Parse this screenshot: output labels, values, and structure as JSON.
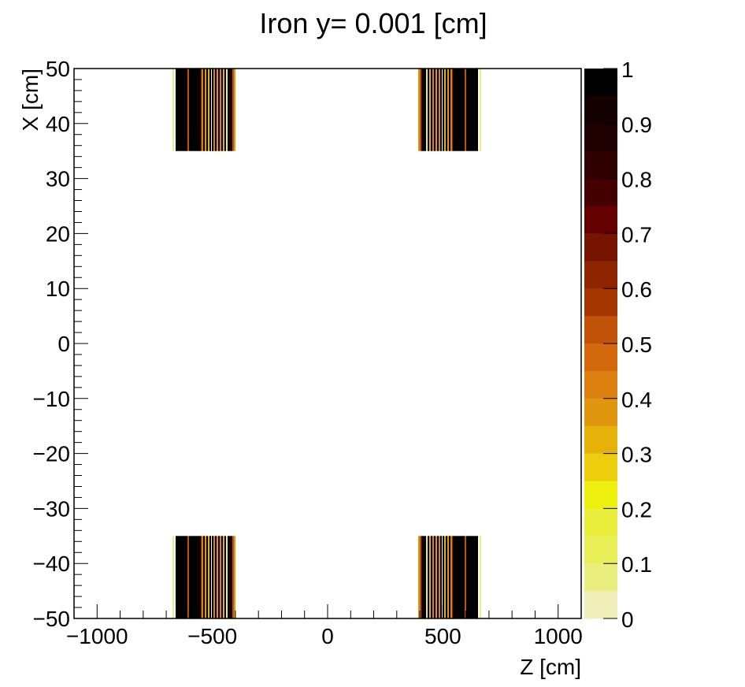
{
  "chart_data": {
    "type": "heatmap",
    "title": "Iron y=  0.001 [cm]",
    "xlabel": "Z [cm]",
    "ylabel": "X [cm]",
    "xlim": [
      -1100,
      1100
    ],
    "ylim": [
      -50,
      50
    ],
    "zlim": [
      0,
      1
    ],
    "x_ticks": [
      -1000,
      -500,
      0,
      500,
      1000
    ],
    "x_tick_labels": [
      "−1000",
      "−500",
      "0",
      "500",
      "1000"
    ],
    "y_ticks": [
      50,
      40,
      30,
      20,
      10,
      0,
      -10,
      -20,
      -30,
      -40,
      -50
    ],
    "y_tick_labels": [
      "50",
      "40",
      "30",
      "20",
      "10",
      "0",
      "−10",
      "−20",
      "−30",
      "−40",
      "−50"
    ],
    "colorbar": {
      "ticks": [
        1,
        0.9,
        0.8,
        0.7,
        0.6,
        0.5,
        0.4,
        0.3,
        0.2,
        0.1,
        0
      ],
      "tick_labels": [
        "1",
        "0.9",
        "0.8",
        "0.7",
        "0.6",
        "0.5",
        "0.4",
        "0.3",
        "0.2",
        "0.1",
        "0"
      ],
      "palette_top_to_bottom": [
        "#000000",
        "#130000",
        "#1e0000",
        "#2e0000",
        "#440000",
        "#640000",
        "#771400",
        "#8c2500",
        "#a63600",
        "#c05307",
        "#d4680c",
        "#dc800f",
        "#e0970f",
        "#e6b20a",
        "#ecce0e",
        "#eef00e",
        "#eaee3c",
        "#eaee56",
        "#eaee7e",
        "#f0efba"
      ]
    },
    "regions": [
      {
        "name": "iron-block-upper-left",
        "z_range": [
          -670,
          -405
        ],
        "x_range": [
          35,
          50
        ]
      },
      {
        "name": "iron-block-upper-right",
        "z_range": [
          395,
          665
        ],
        "x_range": [
          35,
          50
        ]
      },
      {
        "name": "iron-block-lower-left",
        "z_range": [
          -670,
          -405
        ],
        "x_range": [
          -50,
          -35
        ]
      },
      {
        "name": "iron-block-lower-right",
        "z_range": [
          395,
          665
        ],
        "x_range": [
          -50,
          -35
        ]
      }
    ],
    "stripe_pattern_description": "Each block is mostly black (value ~1) with thin vertical stripes of orange/yellow (values ~0.3-0.5) and a pale yellow edge line; the right blocks mirror the left blocks.",
    "left_block_stripes": [
      {
        "x": 219,
        "w": 2,
        "color": "#eaee7e"
      },
      {
        "x": 221,
        "w": 2,
        "color": "#ffffff"
      },
      {
        "x": 223,
        "w": 15,
        "color": "#000000"
      },
      {
        "x": 238,
        "w": 2,
        "color": "#c05307"
      },
      {
        "x": 240,
        "w": 15,
        "color": "#000000"
      },
      {
        "x": 255,
        "w": 1,
        "color": "#8c2500"
      },
      {
        "x": 256,
        "w": 2,
        "color": "#dc800f"
      },
      {
        "x": 258,
        "w": 2,
        "color": "#000000"
      },
      {
        "x": 260,
        "w": 2,
        "color": "#e0970f"
      },
      {
        "x": 262,
        "w": 2,
        "color": "#000000"
      },
      {
        "x": 264,
        "w": 2,
        "color": "#e6b20a"
      },
      {
        "x": 266,
        "w": 2,
        "color": "#000000"
      },
      {
        "x": 268,
        "w": 1,
        "color": "#ffffff"
      },
      {
        "x": 269,
        "w": 2,
        "color": "#000000"
      },
      {
        "x": 271,
        "w": 2,
        "color": "#dc800f"
      },
      {
        "x": 273,
        "w": 2,
        "color": "#000000"
      },
      {
        "x": 275,
        "w": 2,
        "color": "#e0970f"
      },
      {
        "x": 277,
        "w": 2,
        "color": "#000000"
      },
      {
        "x": 279,
        "w": 2,
        "color": "#dc800f"
      },
      {
        "x": 281,
        "w": 2,
        "color": "#000000"
      },
      {
        "x": 283,
        "w": 2,
        "color": "#e6b20a"
      },
      {
        "x": 285,
        "w": 2,
        "color": "#000000"
      },
      {
        "x": 287,
        "w": 2,
        "color": "#eaee7e"
      },
      {
        "x": 289,
        "w": 2,
        "color": "#000000"
      },
      {
        "x": 291,
        "w": 4,
        "color": "#130000"
      },
      {
        "x": 295,
        "w": 2,
        "color": "#c05307"
      },
      {
        "x": 297,
        "w": 2,
        "color": "#e0970f"
      }
    ]
  },
  "colors": {
    "axis": "#000000",
    "background": "#ffffff"
  }
}
